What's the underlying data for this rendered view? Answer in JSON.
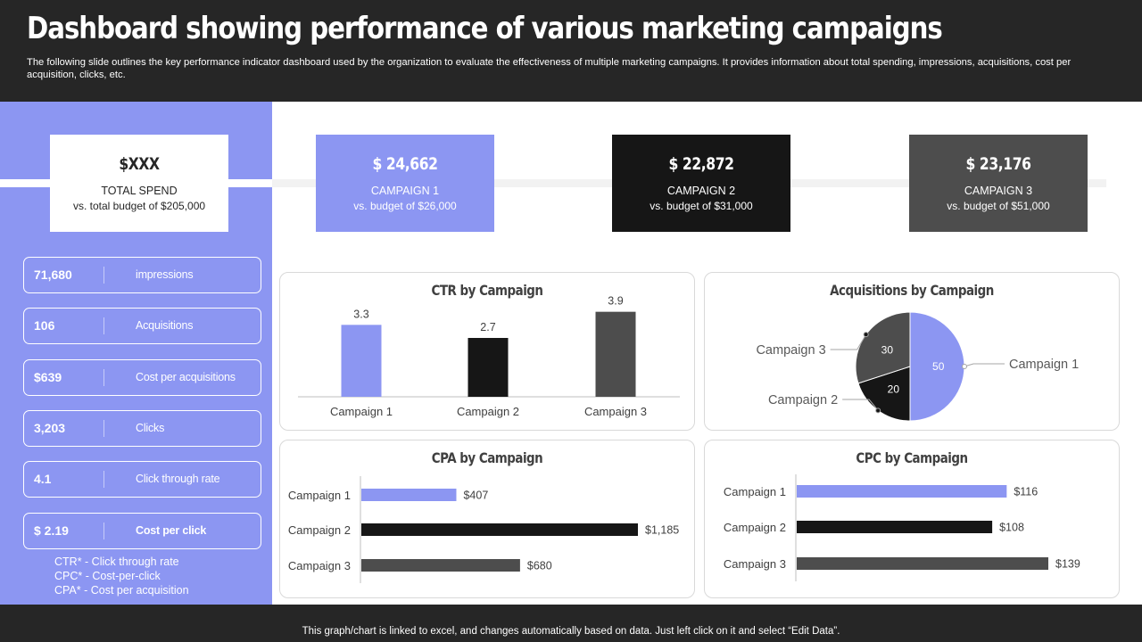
{
  "header": {
    "title": "Dashboard showing performance of various marketing campaigns",
    "subtitle": "The following slide outlines the key performance indicator dashboard used by the organization to evaluate the effectiveness of multiple marketing campaigns. It provides information about total spending, impressions, acquisitions, cost per acquisition, clicks, etc."
  },
  "cards": {
    "total": {
      "value": "$XXX",
      "label": "TOTAL  SPEND",
      "sub": "vs.  total budget  of $205,000"
    },
    "c1": {
      "value": "$ 24,662",
      "label": "CAMPAIGN  1",
      "sub": "vs.  budget  of $26,000"
    },
    "c2": {
      "value": "$ 22,872",
      "label": "CAMPAIGN  2",
      "sub": "vs.  budget  of $31,000"
    },
    "c3": {
      "value": "$ 23,176",
      "label": "CAMPAIGN  3",
      "sub": "vs.  budget  of $51,000"
    }
  },
  "kpis": [
    {
      "value": "71,680",
      "label": "impressions"
    },
    {
      "value": "106",
      "label": "Acquisitions"
    },
    {
      "value": "$639",
      "label": "Cost per acquisitions"
    },
    {
      "value": "3,203",
      "label": "Clicks"
    },
    {
      "value": "4.1",
      "label": "Click through rate"
    },
    {
      "value": "$ 2.19",
      "label": "Cost per click"
    }
  ],
  "legend": {
    "ctr": "CTR* - Click through rate",
    "cpc": "CPC* - Cost-per-click",
    "cpa": "CPA* - Cost per acquisition"
  },
  "footer": {
    "text": "This graph/chart is linked to excel,  and changes automatically based on data. Just left click on it and select “Edit Data”."
  },
  "colors": {
    "campaign1": "#8c96f2",
    "campaign2": "#161616",
    "campaign3": "#4d4d4d",
    "header_bg": "#262626",
    "sidebar_bg": "#8c96f2"
  },
  "chart_data": [
    {
      "type": "bar",
      "title": "CTR by Campaign",
      "categories": [
        "Campaign 1",
        "Campaign 2",
        "Campaign 3"
      ],
      "values": [
        3.3,
        2.7,
        3.9
      ],
      "data_labels": [
        "3.3",
        "2.7",
        "3.9"
      ],
      "colors": [
        "#8c96f2",
        "#161616",
        "#4d4d4d"
      ],
      "ylim": [
        0,
        4.5
      ],
      "grid": false
    },
    {
      "type": "pie",
      "title": "Acquisitions  by Campaign",
      "labels": [
        "Campaign 1",
        "Campaign 2",
        "Campaign 3"
      ],
      "values": [
        50,
        20,
        30
      ],
      "colors": [
        "#8c96f2",
        "#161616",
        "#4d4d4d"
      ]
    },
    {
      "type": "bar",
      "orientation": "horizontal",
      "title": "CPA by Campaign",
      "categories": [
        "Campaign 1",
        "Campaign 2",
        "Campaign 3"
      ],
      "values": [
        407,
        1185,
        680
      ],
      "data_labels": [
        "$407",
        "$1,185",
        "$680"
      ],
      "colors": [
        "#8c96f2",
        "#161616",
        "#4d4d4d"
      ],
      "xlim": [
        0,
        1185
      ],
      "grid": false
    },
    {
      "type": "bar",
      "orientation": "horizontal",
      "title": "CPC by Campaign",
      "categories": [
        "Campaign 1",
        "Campaign 2",
        "Campaign 3"
      ],
      "values": [
        116,
        108,
        139
      ],
      "data_labels": [
        "$116",
        "$108",
        "$139"
      ],
      "colors": [
        "#8c96f2",
        "#161616",
        "#4d4d4d"
      ],
      "xlim": [
        0,
        139
      ],
      "grid": false
    }
  ]
}
